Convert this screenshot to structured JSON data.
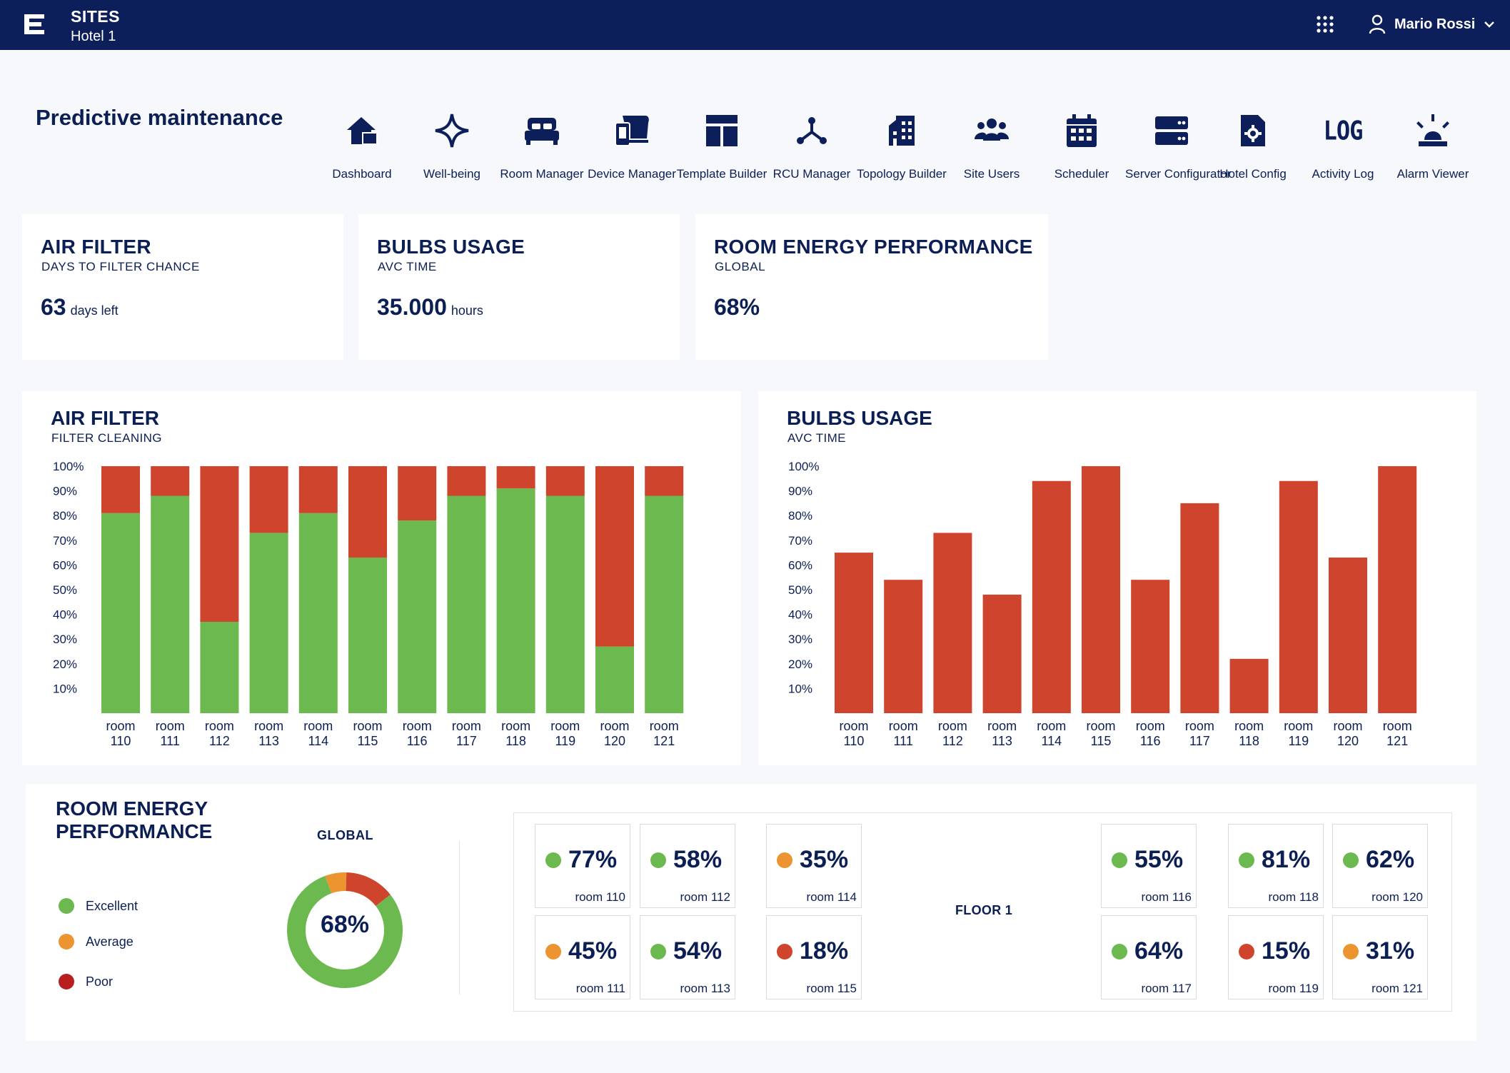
{
  "topbar": {
    "site_title": "SITES",
    "site_subtitle": "Hotel 1",
    "user_name": "Mario Rossi",
    "logo_icon": "brand-e-logo",
    "apps_icon": "grid-apps-icon",
    "user_icon": "user-icon",
    "menu_icon": "chevron-down-icon"
  },
  "page": {
    "title": "Predictive maintenance"
  },
  "nav": [
    {
      "label": "Dashboard",
      "icon": "home-icon"
    },
    {
      "label": "Well-being",
      "icon": "sparkle-icon"
    },
    {
      "label": "Room Manager",
      "icon": "bed-icon"
    },
    {
      "label": "Device Manager",
      "icon": "devices-icon"
    },
    {
      "label": "Template Builder",
      "icon": "template-icon"
    },
    {
      "label": "RCU Manager",
      "icon": "network-icon"
    },
    {
      "label": "Topology Builder",
      "icon": "building-icon"
    },
    {
      "label": "Site Users",
      "icon": "users-icon"
    },
    {
      "label": "Scheduler",
      "icon": "calendar-icon"
    },
    {
      "label": "Server Configurator",
      "icon": "server-icon"
    },
    {
      "label": "Hotel Config",
      "icon": "file-gear-icon"
    },
    {
      "label": "Activity Log",
      "icon": "log-icon",
      "glyph": "LOG"
    },
    {
      "label": "Alarm Viewer",
      "icon": "alarm-icon"
    }
  ],
  "kpis": [
    {
      "title": "AIR FILTER",
      "subtitle": "DAYS TO FILTER CHANCE",
      "value": "63",
      "unit": "days left"
    },
    {
      "title": "BULBS USAGE",
      "subtitle": "AVC TIME",
      "value": "35.000",
      "unit": "hours"
    },
    {
      "title": "ROOM ENERGY PERFORMANCE",
      "subtitle": "GLOBAL",
      "value": "68%",
      "unit": ""
    }
  ],
  "colors": {
    "navy": "#0c1f5a",
    "green": "#6cb94f",
    "red": "#cf442c",
    "orange": "#ec9430",
    "darkred": "#b82020"
  },
  "chart_data": [
    {
      "type": "bar",
      "title": "AIR FILTER",
      "subtitle": "FILTER CLEANING",
      "stacked": true,
      "categories": [
        "room 110",
        "room 111",
        "room 112",
        "room 113",
        "room 114",
        "room 115",
        "room 116",
        "room 117",
        "room 118",
        "room 119",
        "room 120",
        "room 121"
      ],
      "series": [
        {
          "color": "#6cb94f",
          "values": [
            81,
            88,
            37,
            73,
            81,
            63,
            78,
            88,
            91,
            88,
            27,
            88
          ]
        },
        {
          "color": "#cf442c",
          "values": [
            19,
            12,
            63,
            27,
            19,
            37,
            22,
            12,
            9,
            12,
            73,
            12
          ]
        }
      ],
      "yticks": [
        "100%",
        "90%",
        "80%",
        "70%",
        "60%",
        "50%",
        "40%",
        "30%",
        "20%",
        "10%"
      ],
      "ylim": [
        0,
        100
      ],
      "grid": false
    },
    {
      "type": "bar",
      "title": "BULBS USAGE",
      "subtitle": "AVC TIME",
      "categories": [
        "room 110",
        "room 111",
        "room 112",
        "room 113",
        "room 114",
        "room 115",
        "room 116",
        "room 117",
        "room 118",
        "room 119",
        "room 120",
        "room 121"
      ],
      "values": [
        65,
        54,
        73,
        48,
        94,
        100,
        54,
        85,
        22,
        94,
        63,
        100
      ],
      "color": "#cf442c",
      "yticks": [
        "100%",
        "90%",
        "80%",
        "70%",
        "60%",
        "50%",
        "40%",
        "30%",
        "20%",
        "10%"
      ],
      "ylim": [
        0,
        100
      ],
      "grid": false
    },
    {
      "type": "pie",
      "title": "GLOBAL",
      "center_label": "68%",
      "slices": [
        {
          "label": "Excellent",
          "value": 80,
          "color": "#6cb94f"
        },
        {
          "label": "Average",
          "value": 6,
          "color": "#ec9430"
        },
        {
          "label": "Poor",
          "value": 14,
          "color": "#cf442c"
        }
      ]
    }
  ],
  "energy": {
    "title": "ROOM ENERGY PERFORMANCE",
    "legend": [
      {
        "label": "Excellent",
        "color": "#6cb94f"
      },
      {
        "label": "Average",
        "color": "#ec9430"
      },
      {
        "label": "Poor",
        "color": "#b82020"
      }
    ],
    "floor_label": "FLOOR 1",
    "rooms": [
      {
        "value": "77%",
        "name": "room 110",
        "color": "#6cb94f"
      },
      {
        "value": "58%",
        "name": "room 112",
        "color": "#6cb94f"
      },
      {
        "value": "35%",
        "name": "room 114",
        "color": "#ec9430"
      },
      {
        "value": "45%",
        "name": "room 111",
        "color": "#ec9430"
      },
      {
        "value": "54%",
        "name": "room 113",
        "color": "#6cb94f"
      },
      {
        "value": "18%",
        "name": "room 115",
        "color": "#cf442c"
      },
      {
        "value": "55%",
        "name": "room 116",
        "color": "#6cb94f"
      },
      {
        "value": "81%",
        "name": "room 118",
        "color": "#6cb94f"
      },
      {
        "value": "62%",
        "name": "room 120",
        "color": "#6cb94f"
      },
      {
        "value": "64%",
        "name": "room 117",
        "color": "#6cb94f"
      },
      {
        "value": "15%",
        "name": "room 119",
        "color": "#cf442c"
      },
      {
        "value": "31%",
        "name": "room 121",
        "color": "#ec9430"
      }
    ]
  }
}
